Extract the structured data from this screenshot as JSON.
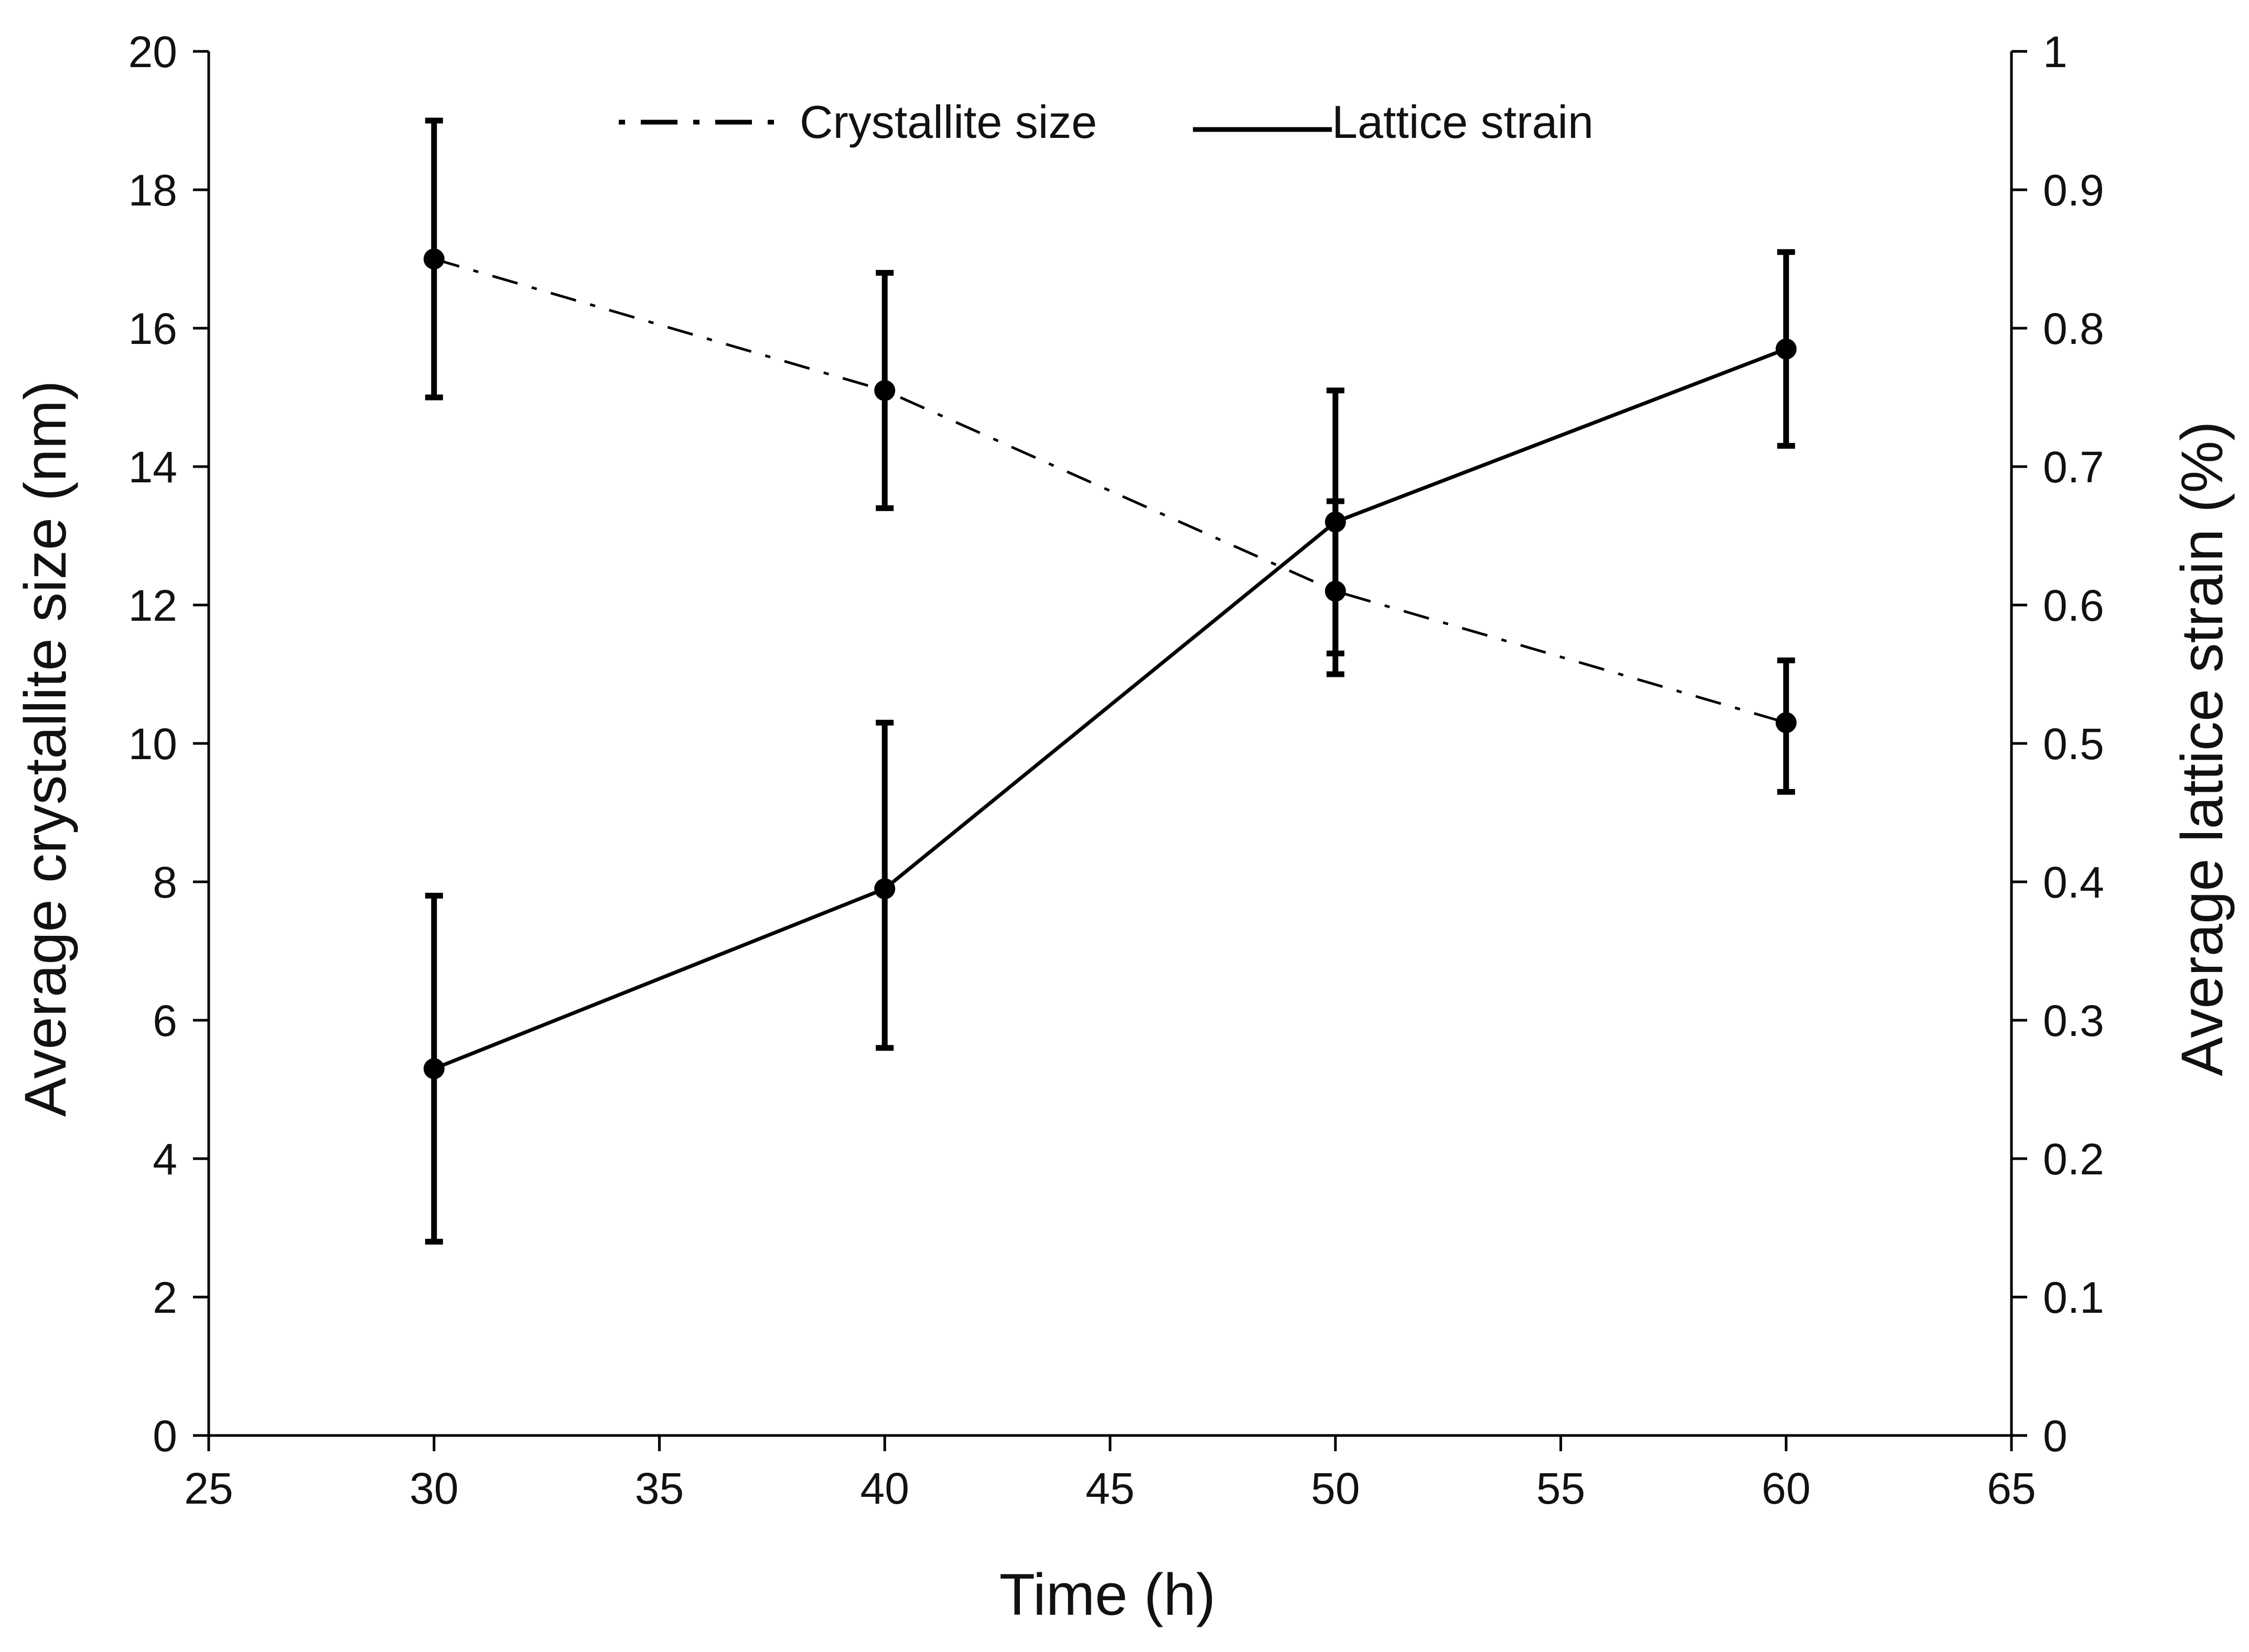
{
  "chart_data": {
    "type": "line",
    "title": "",
    "xlabel": "Time (h)",
    "ylabel": "Average crystallite size (nm)",
    "y2label": "Average lattice strain (%)",
    "xlim": [
      25,
      65
    ],
    "ylim": [
      0,
      20
    ],
    "y2lim": [
      0,
      1
    ],
    "xticks": [
      "25",
      "30",
      "35",
      "40",
      "45",
      "50",
      "55",
      "60",
      "65"
    ],
    "yticks": [
      "0",
      "2",
      "4",
      "6",
      "8",
      "10",
      "12",
      "14",
      "16",
      "18",
      "20"
    ],
    "y2ticks": [
      "0",
      "0.1",
      "0.2",
      "0.3",
      "0.4",
      "0.5",
      "0.6",
      "0.7",
      "0.8",
      "0.9",
      "1"
    ],
    "grid": false,
    "legend_position": "top-center",
    "series": [
      {
        "name": "Crystallite size",
        "axis": "left",
        "line_style": "dash-dot",
        "x": [
          30,
          40,
          50,
          60
        ],
        "y": [
          17.0,
          15.1,
          12.2,
          10.3
        ],
        "err_low": [
          15.0,
          13.4,
          11.3,
          9.3
        ],
        "err_high": [
          19.0,
          16.8,
          13.5,
          11.2
        ]
      },
      {
        "name": "Lattice strain",
        "axis": "right",
        "line_style": "solid",
        "x": [
          30,
          40,
          50,
          60
        ],
        "y": [
          0.265,
          0.395,
          0.66,
          0.785
        ],
        "err_low": [
          0.14,
          0.28,
          0.55,
          0.715
        ],
        "err_high": [
          0.39,
          0.515,
          0.755,
          0.855
        ]
      }
    ]
  }
}
